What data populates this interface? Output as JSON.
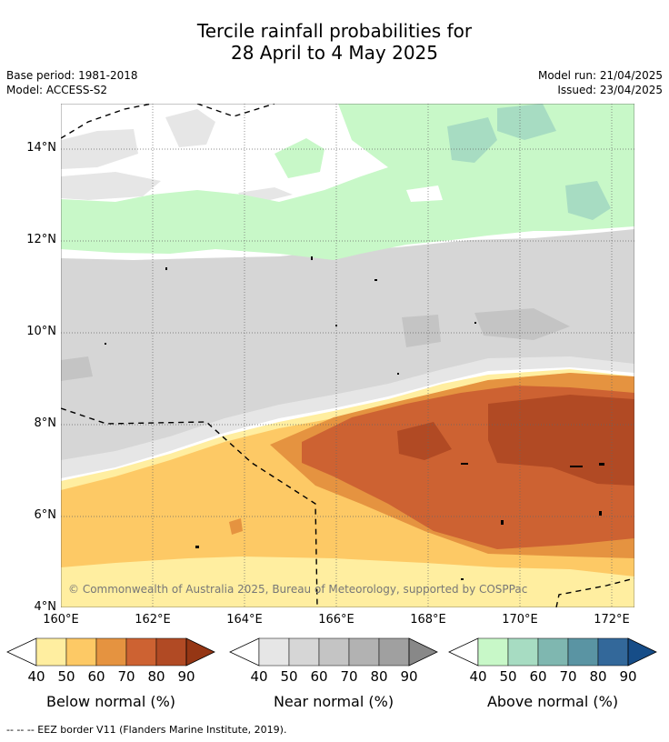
{
  "title_line1": "Tercile rainfall probabilities for",
  "title_line2": "28 April to 4 May 2025",
  "meta_left": [
    "Base period: 1981-2018",
    "Model: ACCESS-S2"
  ],
  "meta_right": [
    "Model run: 21/04/2025",
    "Issued: 23/04/2025"
  ],
  "lat_labels": [
    "14°N",
    "12°N",
    "10°N",
    "8°N",
    "6°N",
    "4°N"
  ],
  "lon_labels": [
    "160°E",
    "162°E",
    "164°E",
    "166°E",
    "168°E",
    "170°E",
    "172°E"
  ],
  "copyright": "© Commonwealth of Australia 2025, Bureau of Meteorology, supported by COSPPac",
  "colorbars": [
    {
      "title": "Below normal (%)",
      "ticks": [
        "40",
        "50",
        "60",
        "70",
        "80",
        "90"
      ],
      "colors": [
        "#ffeea0",
        "#fdc965",
        "#e59340",
        "#cd6232",
        "#b14a24",
        "#953614"
      ]
    },
    {
      "title": "Near normal (%)",
      "ticks": [
        "40",
        "50",
        "60",
        "70",
        "80",
        "90"
      ],
      "colors": [
        "#e6e6e6",
        "#d6d6d6",
        "#c4c4c4",
        "#b2b2b2",
        "#a0a0a0",
        "#888888"
      ]
    },
    {
      "title": "Above normal (%)",
      "ticks": [
        "40",
        "50",
        "60",
        "70",
        "80",
        "90"
      ],
      "colors": [
        "#c8f8c8",
        "#a7dcc2",
        "#7fb7b0",
        "#5a94a3",
        "#33689a",
        "#164d88"
      ]
    }
  ],
  "footnote": "--  --  -- EEZ border V11 (Flanders Marine Institute, 2019)."
}
